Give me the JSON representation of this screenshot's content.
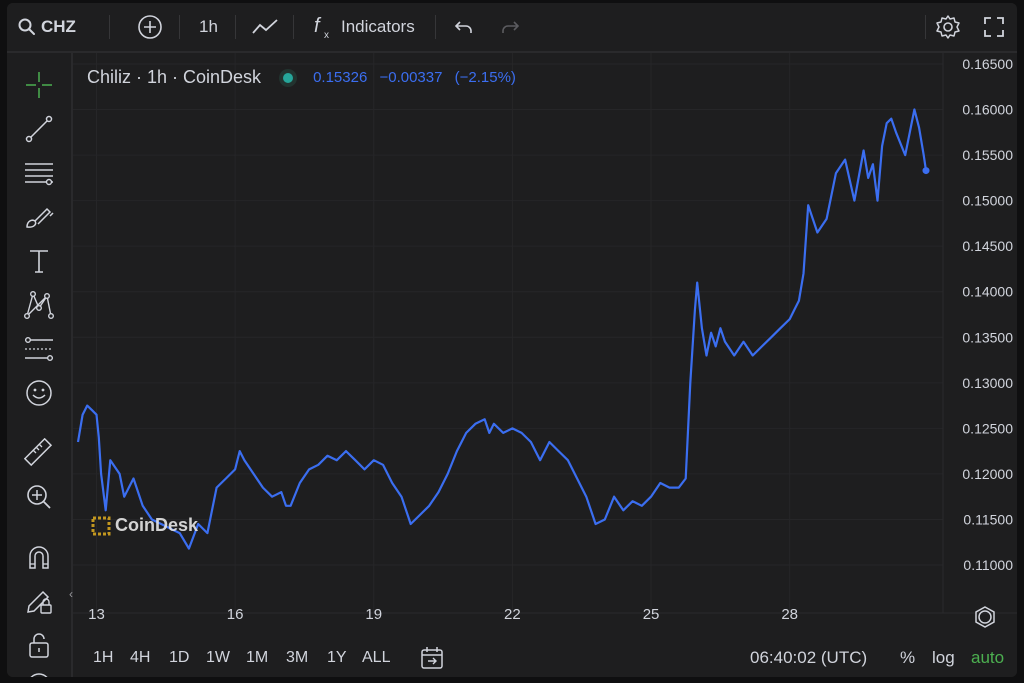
{
  "toolbar": {
    "symbol": "CHZ",
    "interval": "1h",
    "indicators_label": "Indicators"
  },
  "legend": {
    "title": "Chiliz · 1h · CoinDesk",
    "price": "0.15326",
    "change": "−0.00337",
    "change_pct": "(−2.15%)"
  },
  "watermark": "CoinDesk",
  "range_buttons": [
    "1H",
    "4H",
    "1D",
    "1W",
    "1M",
    "3M",
    "1Y",
    "ALL"
  ],
  "footer": {
    "time": "06:40:02 (UTC)",
    "percent_label": "%",
    "log_label": "log",
    "auto_label": "auto"
  },
  "colors": {
    "line": "#3b6ef0",
    "background": "#1e1e1f",
    "auto_active": "#4caf50",
    "live_dot": "#26a69a"
  },
  "chart_data": {
    "type": "line",
    "x_ticks": [
      13,
      16,
      19,
      22,
      25,
      28
    ],
    "y_ticks": [
      "0.11000",
      "0.11500",
      "0.12000",
      "0.12500",
      "0.13000",
      "0.13500",
      "0.14000",
      "0.14500",
      "0.15000",
      "0.15500",
      "0.16000",
      "0.16500"
    ],
    "ylim": [
      0.108,
      0.1665
    ],
    "xlim": [
      12.6,
      30.95
    ],
    "grid": true,
    "series": [
      {
        "x": [
          12.6,
          12.7,
          12.8,
          12.9,
          13.0,
          13.05,
          13.1,
          13.2,
          13.3,
          13.5,
          13.6,
          13.8,
          14.0,
          14.2,
          14.4,
          14.6,
          14.8,
          15.0,
          15.2,
          15.4,
          15.5,
          15.6,
          15.8,
          16.0,
          16.1,
          16.2,
          16.4,
          16.6,
          16.8,
          17.0,
          17.1,
          17.2,
          17.4,
          17.6,
          17.8,
          18.0,
          18.2,
          18.4,
          18.6,
          18.8,
          19.0,
          19.2,
          19.4,
          19.6,
          19.8,
          20.0,
          20.2,
          20.4,
          20.6,
          20.8,
          21.0,
          21.2,
          21.4,
          21.5,
          21.6,
          21.8,
          22.0,
          22.2,
          22.4,
          22.6,
          22.8,
          23.0,
          23.2,
          23.4,
          23.6,
          23.8,
          24.0,
          24.2,
          24.4,
          24.6,
          24.8,
          25.0,
          25.2,
          25.4,
          25.6,
          25.75,
          25.85,
          25.95,
          26.0,
          26.1,
          26.2,
          26.3,
          26.4,
          26.5,
          26.6,
          26.8,
          27.0,
          27.2,
          27.4,
          27.6,
          27.8,
          28.0,
          28.1,
          28.2,
          28.3,
          28.4,
          28.5,
          28.6,
          28.8,
          29.0,
          29.2,
          29.4,
          29.6,
          29.7,
          29.8,
          29.9,
          30.0,
          30.1,
          30.2,
          30.3,
          30.5,
          30.6,
          30.7,
          30.8,
          30.9,
          30.95
        ],
        "y": [
          0.1235,
          0.1265,
          0.1275,
          0.127,
          0.1265,
          0.124,
          0.12,
          0.116,
          0.1215,
          0.12,
          0.1175,
          0.1195,
          0.1165,
          0.115,
          0.1145,
          0.114,
          0.1135,
          0.1118,
          0.1145,
          0.1135,
          0.116,
          0.1185,
          0.1195,
          0.1205,
          0.1225,
          0.1215,
          0.12,
          0.1185,
          0.1175,
          0.118,
          0.1165,
          0.1165,
          0.119,
          0.1205,
          0.121,
          0.122,
          0.1215,
          0.1225,
          0.1215,
          0.1205,
          0.1215,
          0.121,
          0.119,
          0.1175,
          0.1145,
          0.1155,
          0.1165,
          0.118,
          0.12,
          0.1225,
          0.1245,
          0.1255,
          0.126,
          0.1245,
          0.1255,
          0.1245,
          0.125,
          0.1245,
          0.1235,
          0.1215,
          0.1235,
          0.1225,
          0.1215,
          0.1195,
          0.1175,
          0.1145,
          0.115,
          0.1175,
          0.116,
          0.117,
          0.1165,
          0.1175,
          0.119,
          0.1185,
          0.1185,
          0.1195,
          0.13,
          0.138,
          0.141,
          0.136,
          0.133,
          0.1355,
          0.134,
          0.136,
          0.1345,
          0.133,
          0.1345,
          0.133,
          0.134,
          0.135,
          0.136,
          0.137,
          0.138,
          0.139,
          0.142,
          0.1495,
          0.148,
          0.1465,
          0.148,
          0.153,
          0.1545,
          0.15,
          0.1555,
          0.1525,
          0.154,
          0.15,
          0.156,
          0.1585,
          0.159,
          0.1575,
          0.155,
          0.1575,
          0.16,
          0.158,
          0.155,
          0.1533
        ]
      }
    ]
  }
}
